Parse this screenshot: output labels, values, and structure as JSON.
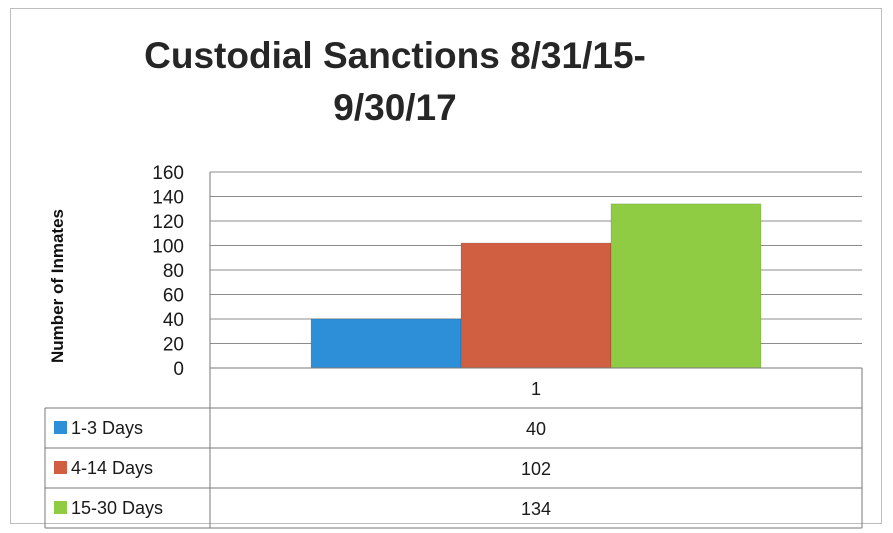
{
  "chart_data": {
    "type": "bar",
    "title_line1": "Custodial Sanctions 8/31/15-",
    "title_line2": "9/30/17",
    "ylabel": "Number of Inmates",
    "xlabel": "",
    "categories": [
      "1"
    ],
    "ylim": [
      0,
      160
    ],
    "yticks": [
      0,
      20,
      40,
      60,
      80,
      100,
      120,
      140,
      160
    ],
    "grid": true,
    "legend": "data-table-below",
    "series": [
      {
        "name": "1-3 Days",
        "values": [
          40
        ],
        "color": "#2e8fd9"
      },
      {
        "name": "4-14 Days",
        "values": [
          102
        ],
        "color": "#cf5f40"
      },
      {
        "name": "15-30 Days",
        "values": [
          134
        ],
        "color": "#8fcc43"
      }
    ]
  }
}
